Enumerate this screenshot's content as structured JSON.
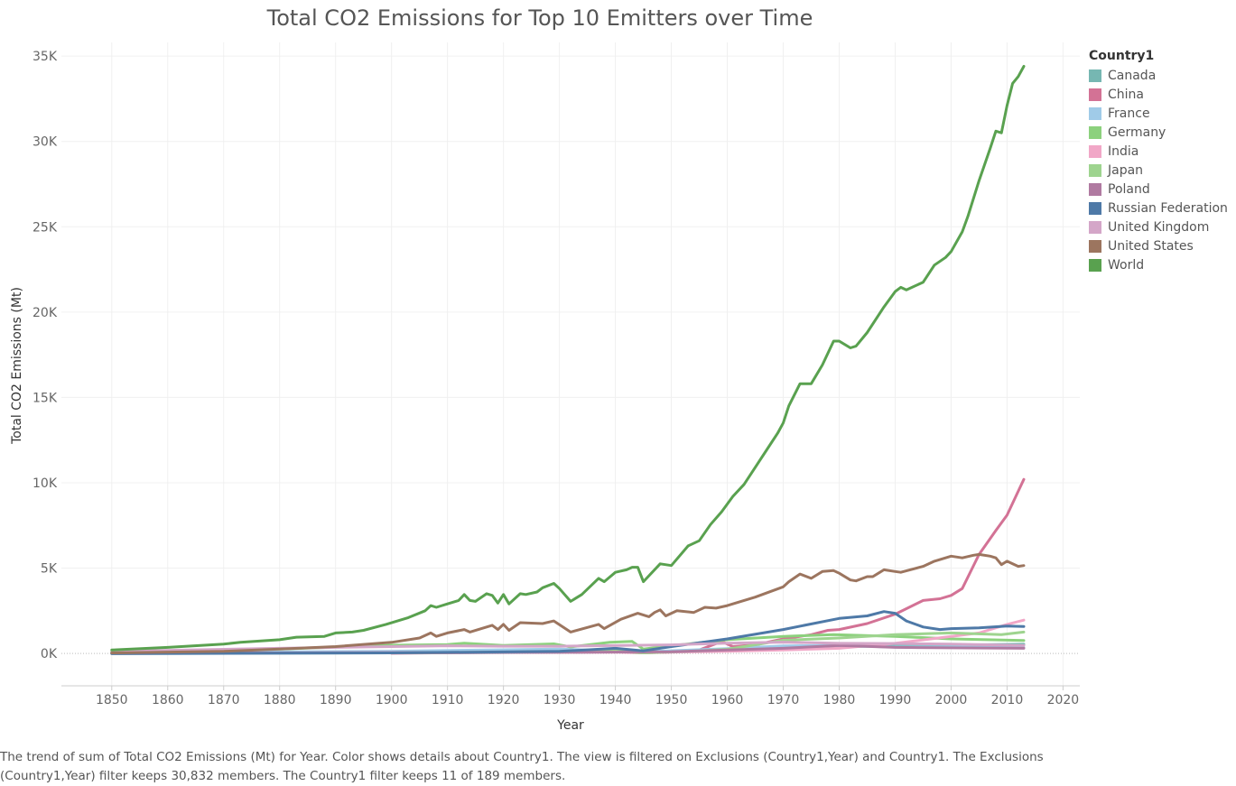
{
  "chart_data": {
    "type": "line",
    "title": "Total CO2 Emissions for Top 10 Emitters over Time",
    "xlabel": "Year",
    "ylabel": "Total CO2 Emissions (Mt)",
    "xlim": [
      1841,
      2023
    ],
    "ylim": [
      -1900,
      35800
    ],
    "x_ticks": [
      1850,
      1860,
      1870,
      1880,
      1890,
      1900,
      1910,
      1920,
      1930,
      1940,
      1950,
      1960,
      1970,
      1980,
      1990,
      2000,
      2010,
      2020
    ],
    "y_ticks": [
      {
        "value": 0,
        "label": "0K"
      },
      {
        "value": 5000,
        "label": "5K"
      },
      {
        "value": 10000,
        "label": "10K"
      },
      {
        "value": 15000,
        "label": "15K"
      },
      {
        "value": 20000,
        "label": "20K"
      },
      {
        "value": 25000,
        "label": "25K"
      },
      {
        "value": 30000,
        "label": "30K"
      },
      {
        "value": 35000,
        "label": "35K"
      }
    ],
    "grid": true,
    "legend_title": "Country1",
    "legend_position": "right",
    "series": [
      {
        "name": "Canada",
        "color": "#76b7b2",
        "points": [
          [
            1850,
            10
          ],
          [
            1900,
            30
          ],
          [
            1930,
            60
          ],
          [
            1950,
            120
          ],
          [
            1970,
            330
          ],
          [
            1990,
            450
          ],
          [
            2013,
            540
          ]
        ]
      },
      {
        "name": "China",
        "color": "#d37295",
        "points": [
          [
            1900,
            10
          ],
          [
            1920,
            60
          ],
          [
            1940,
            90
          ],
          [
            1945,
            30
          ],
          [
            1950,
            80
          ],
          [
            1955,
            200
          ],
          [
            1959,
            700
          ],
          [
            1961,
            400
          ],
          [
            1965,
            500
          ],
          [
            1970,
            850
          ],
          [
            1975,
            1100
          ],
          [
            1978,
            1350
          ],
          [
            1980,
            1400
          ],
          [
            1985,
            1750
          ],
          [
            1990,
            2300
          ],
          [
            1995,
            3100
          ],
          [
            1998,
            3200
          ],
          [
            2000,
            3400
          ],
          [
            2002,
            3800
          ],
          [
            2005,
            5800
          ],
          [
            2008,
            7200
          ],
          [
            2010,
            8100
          ],
          [
            2012,
            9500
          ],
          [
            2013,
            10200
          ]
        ]
      },
      {
        "name": "France",
        "color": "#a0cbe8",
        "points": [
          [
            1850,
            40
          ],
          [
            1900,
            130
          ],
          [
            1930,
            250
          ],
          [
            1945,
            100
          ],
          [
            1960,
            280
          ],
          [
            1970,
            440
          ],
          [
            1980,
            470
          ],
          [
            1990,
            370
          ],
          [
            2000,
            380
          ],
          [
            2013,
            340
          ]
        ]
      },
      {
        "name": "Germany",
        "color": "#8cd17d",
        "points": [
          [
            1850,
            80
          ],
          [
            1880,
            250
          ],
          [
            1900,
            480
          ],
          [
            1910,
            520
          ],
          [
            1913,
            600
          ],
          [
            1920,
            470
          ],
          [
            1929,
            560
          ],
          [
            1932,
            380
          ],
          [
            1939,
            650
          ],
          [
            1943,
            700
          ],
          [
            1945,
            250
          ],
          [
            1950,
            450
          ],
          [
            1960,
            800
          ],
          [
            1970,
            1000
          ],
          [
            1979,
            1100
          ],
          [
            1990,
            1000
          ],
          [
            2000,
            850
          ],
          [
            2013,
            760
          ]
        ]
      },
      {
        "name": "India",
        "color": "#f1a7c7",
        "points": [
          [
            1850,
            5
          ],
          [
            1900,
            50
          ],
          [
            1950,
            80
          ],
          [
            1960,
            120
          ],
          [
            1970,
            200
          ],
          [
            1980,
            300
          ],
          [
            1990,
            590
          ],
          [
            2000,
            1000
          ],
          [
            2005,
            1200
          ],
          [
            2010,
            1700
          ],
          [
            2013,
            1950
          ]
        ]
      },
      {
        "name": "Japan",
        "color": "#9ed48f",
        "points": [
          [
            1900,
            30
          ],
          [
            1920,
            80
          ],
          [
            1940,
            150
          ],
          [
            1945,
            30
          ],
          [
            1955,
            150
          ],
          [
            1960,
            240
          ],
          [
            1970,
            770
          ],
          [
            1980,
            900
          ],
          [
            1990,
            1100
          ],
          [
            2000,
            1200
          ],
          [
            2009,
            1100
          ],
          [
            2013,
            1250
          ]
        ]
      },
      {
        "name": "Poland",
        "color": "#b07aa1",
        "points": [
          [
            1850,
            10
          ],
          [
            1900,
            40
          ],
          [
            1930,
            60
          ],
          [
            1950,
            100
          ],
          [
            1970,
            300
          ],
          [
            1980,
            470
          ],
          [
            1990,
            350
          ],
          [
            2013,
            300
          ]
        ]
      },
      {
        "name": "Russian Federation",
        "color": "#4e79a7",
        "points": [
          [
            1850,
            -20
          ],
          [
            1900,
            30
          ],
          [
            1930,
            120
          ],
          [
            1940,
            300
          ],
          [
            1945,
            150
          ],
          [
            1950,
            400
          ],
          [
            1960,
            850
          ],
          [
            1970,
            1400
          ],
          [
            1980,
            2050
          ],
          [
            1985,
            2200
          ],
          [
            1988,
            2450
          ],
          [
            1990,
            2350
          ],
          [
            1992,
            1900
          ],
          [
            1995,
            1550
          ],
          [
            1998,
            1400
          ],
          [
            2000,
            1450
          ],
          [
            2005,
            1500
          ],
          [
            2010,
            1600
          ],
          [
            2013,
            1580
          ]
        ]
      },
      {
        "name": "United Kingdom",
        "color": "#d4a6c8",
        "points": [
          [
            1850,
            120
          ],
          [
            1880,
            300
          ],
          [
            1900,
            400
          ],
          [
            1910,
            450
          ],
          [
            1920,
            420
          ],
          [
            1930,
            420
          ],
          [
            1950,
            500
          ],
          [
            1960,
            600
          ],
          [
            1970,
            660
          ],
          [
            1980,
            590
          ],
          [
            1990,
            580
          ],
          [
            2000,
            550
          ],
          [
            2013,
            470
          ]
        ]
      },
      {
        "name": "United States",
        "color": "#9c755f",
        "points": [
          [
            1850,
            30
          ],
          [
            1870,
            120
          ],
          [
            1880,
            250
          ],
          [
            1890,
            400
          ],
          [
            1900,
            650
          ],
          [
            1905,
            900
          ],
          [
            1907,
            1200
          ],
          [
            1908,
            1000
          ],
          [
            1910,
            1200
          ],
          [
            1913,
            1400
          ],
          [
            1914,
            1250
          ],
          [
            1918,
            1650
          ],
          [
            1919,
            1400
          ],
          [
            1920,
            1700
          ],
          [
            1921,
            1350
          ],
          [
            1923,
            1800
          ],
          [
            1927,
            1750
          ],
          [
            1929,
            1900
          ],
          [
            1932,
            1250
          ],
          [
            1937,
            1700
          ],
          [
            1938,
            1450
          ],
          [
            1941,
            2000
          ],
          [
            1944,
            2350
          ],
          [
            1946,
            2150
          ],
          [
            1947,
            2400
          ],
          [
            1948,
            2550
          ],
          [
            1949,
            2200
          ],
          [
            1951,
            2500
          ],
          [
            1954,
            2400
          ],
          [
            1956,
            2700
          ],
          [
            1958,
            2650
          ],
          [
            1960,
            2800
          ],
          [
            1965,
            3300
          ],
          [
            1970,
            3900
          ],
          [
            1971,
            4200
          ],
          [
            1973,
            4650
          ],
          [
            1975,
            4400
          ],
          [
            1977,
            4800
          ],
          [
            1979,
            4850
          ],
          [
            1980,
            4700
          ],
          [
            1982,
            4300
          ],
          [
            1983,
            4250
          ],
          [
            1985,
            4500
          ],
          [
            1986,
            4500
          ],
          [
            1988,
            4900
          ],
          [
            1990,
            4800
          ],
          [
            1991,
            4750
          ],
          [
            1995,
            5100
          ],
          [
            1997,
            5400
          ],
          [
            2000,
            5700
          ],
          [
            2002,
            5600
          ],
          [
            2004,
            5750
          ],
          [
            2005,
            5800
          ],
          [
            2007,
            5700
          ],
          [
            2008,
            5600
          ],
          [
            2009,
            5200
          ],
          [
            2010,
            5400
          ],
          [
            2012,
            5100
          ],
          [
            2013,
            5150
          ]
        ]
      },
      {
        "name": "World",
        "color": "#59a14f",
        "points": [
          [
            1850,
            200
          ],
          [
            1860,
            350
          ],
          [
            1870,
            550
          ],
          [
            1873,
            650
          ],
          [
            1880,
            800
          ],
          [
            1883,
            950
          ],
          [
            1888,
            1000
          ],
          [
            1890,
            1200
          ],
          [
            1893,
            1250
          ],
          [
            1895,
            1350
          ],
          [
            1899,
            1700
          ],
          [
            1903,
            2100
          ],
          [
            1906,
            2500
          ],
          [
            1907,
            2800
          ],
          [
            1908,
            2700
          ],
          [
            1910,
            2900
          ],
          [
            1912,
            3100
          ],
          [
            1913,
            3450
          ],
          [
            1914,
            3100
          ],
          [
            1915,
            3050
          ],
          [
            1917,
            3500
          ],
          [
            1918,
            3400
          ],
          [
            1919,
            2950
          ],
          [
            1920,
            3450
          ],
          [
            1921,
            2900
          ],
          [
            1923,
            3500
          ],
          [
            1924,
            3450
          ],
          [
            1926,
            3600
          ],
          [
            1927,
            3850
          ],
          [
            1929,
            4100
          ],
          [
            1930,
            3800
          ],
          [
            1932,
            3050
          ],
          [
            1934,
            3450
          ],
          [
            1937,
            4400
          ],
          [
            1938,
            4200
          ],
          [
            1940,
            4750
          ],
          [
            1942,
            4900
          ],
          [
            1943,
            5050
          ],
          [
            1944,
            5050
          ],
          [
            1945,
            4200
          ],
          [
            1946,
            4550
          ],
          [
            1948,
            5250
          ],
          [
            1950,
            5150
          ],
          [
            1953,
            6300
          ],
          [
            1955,
            6600
          ],
          [
            1957,
            7550
          ],
          [
            1959,
            8300
          ],
          [
            1961,
            9200
          ],
          [
            1963,
            9900
          ],
          [
            1965,
            10900
          ],
          [
            1967,
            11900
          ],
          [
            1969,
            12900
          ],
          [
            1970,
            13500
          ],
          [
            1971,
            14500
          ],
          [
            1973,
            15800
          ],
          [
            1975,
            15800
          ],
          [
            1977,
            16900
          ],
          [
            1979,
            18300
          ],
          [
            1980,
            18300
          ],
          [
            1982,
            17900
          ],
          [
            1983,
            18000
          ],
          [
            1985,
            18800
          ],
          [
            1988,
            20300
          ],
          [
            1990,
            21200
          ],
          [
            1991,
            21450
          ],
          [
            1992,
            21300
          ],
          [
            1995,
            21750
          ],
          [
            1997,
            22750
          ],
          [
            1999,
            23200
          ],
          [
            2000,
            23550
          ],
          [
            2002,
            24700
          ],
          [
            2003,
            25600
          ],
          [
            2005,
            27700
          ],
          [
            2007,
            29600
          ],
          [
            2008,
            30600
          ],
          [
            2009,
            30500
          ],
          [
            2010,
            32100
          ],
          [
            2011,
            33400
          ],
          [
            2012,
            33800
          ],
          [
            2013,
            34400
          ]
        ]
      }
    ]
  },
  "caption": "The trend of sum of Total CO2 Emissions (Mt)  for Year.  Color shows details about Country1. The view is filtered on Exclusions (Country1,Year) and Country1. The Exclusions (Country1,Year) filter keeps 30,832 members. The Country1 filter keeps 11 of 189 members."
}
